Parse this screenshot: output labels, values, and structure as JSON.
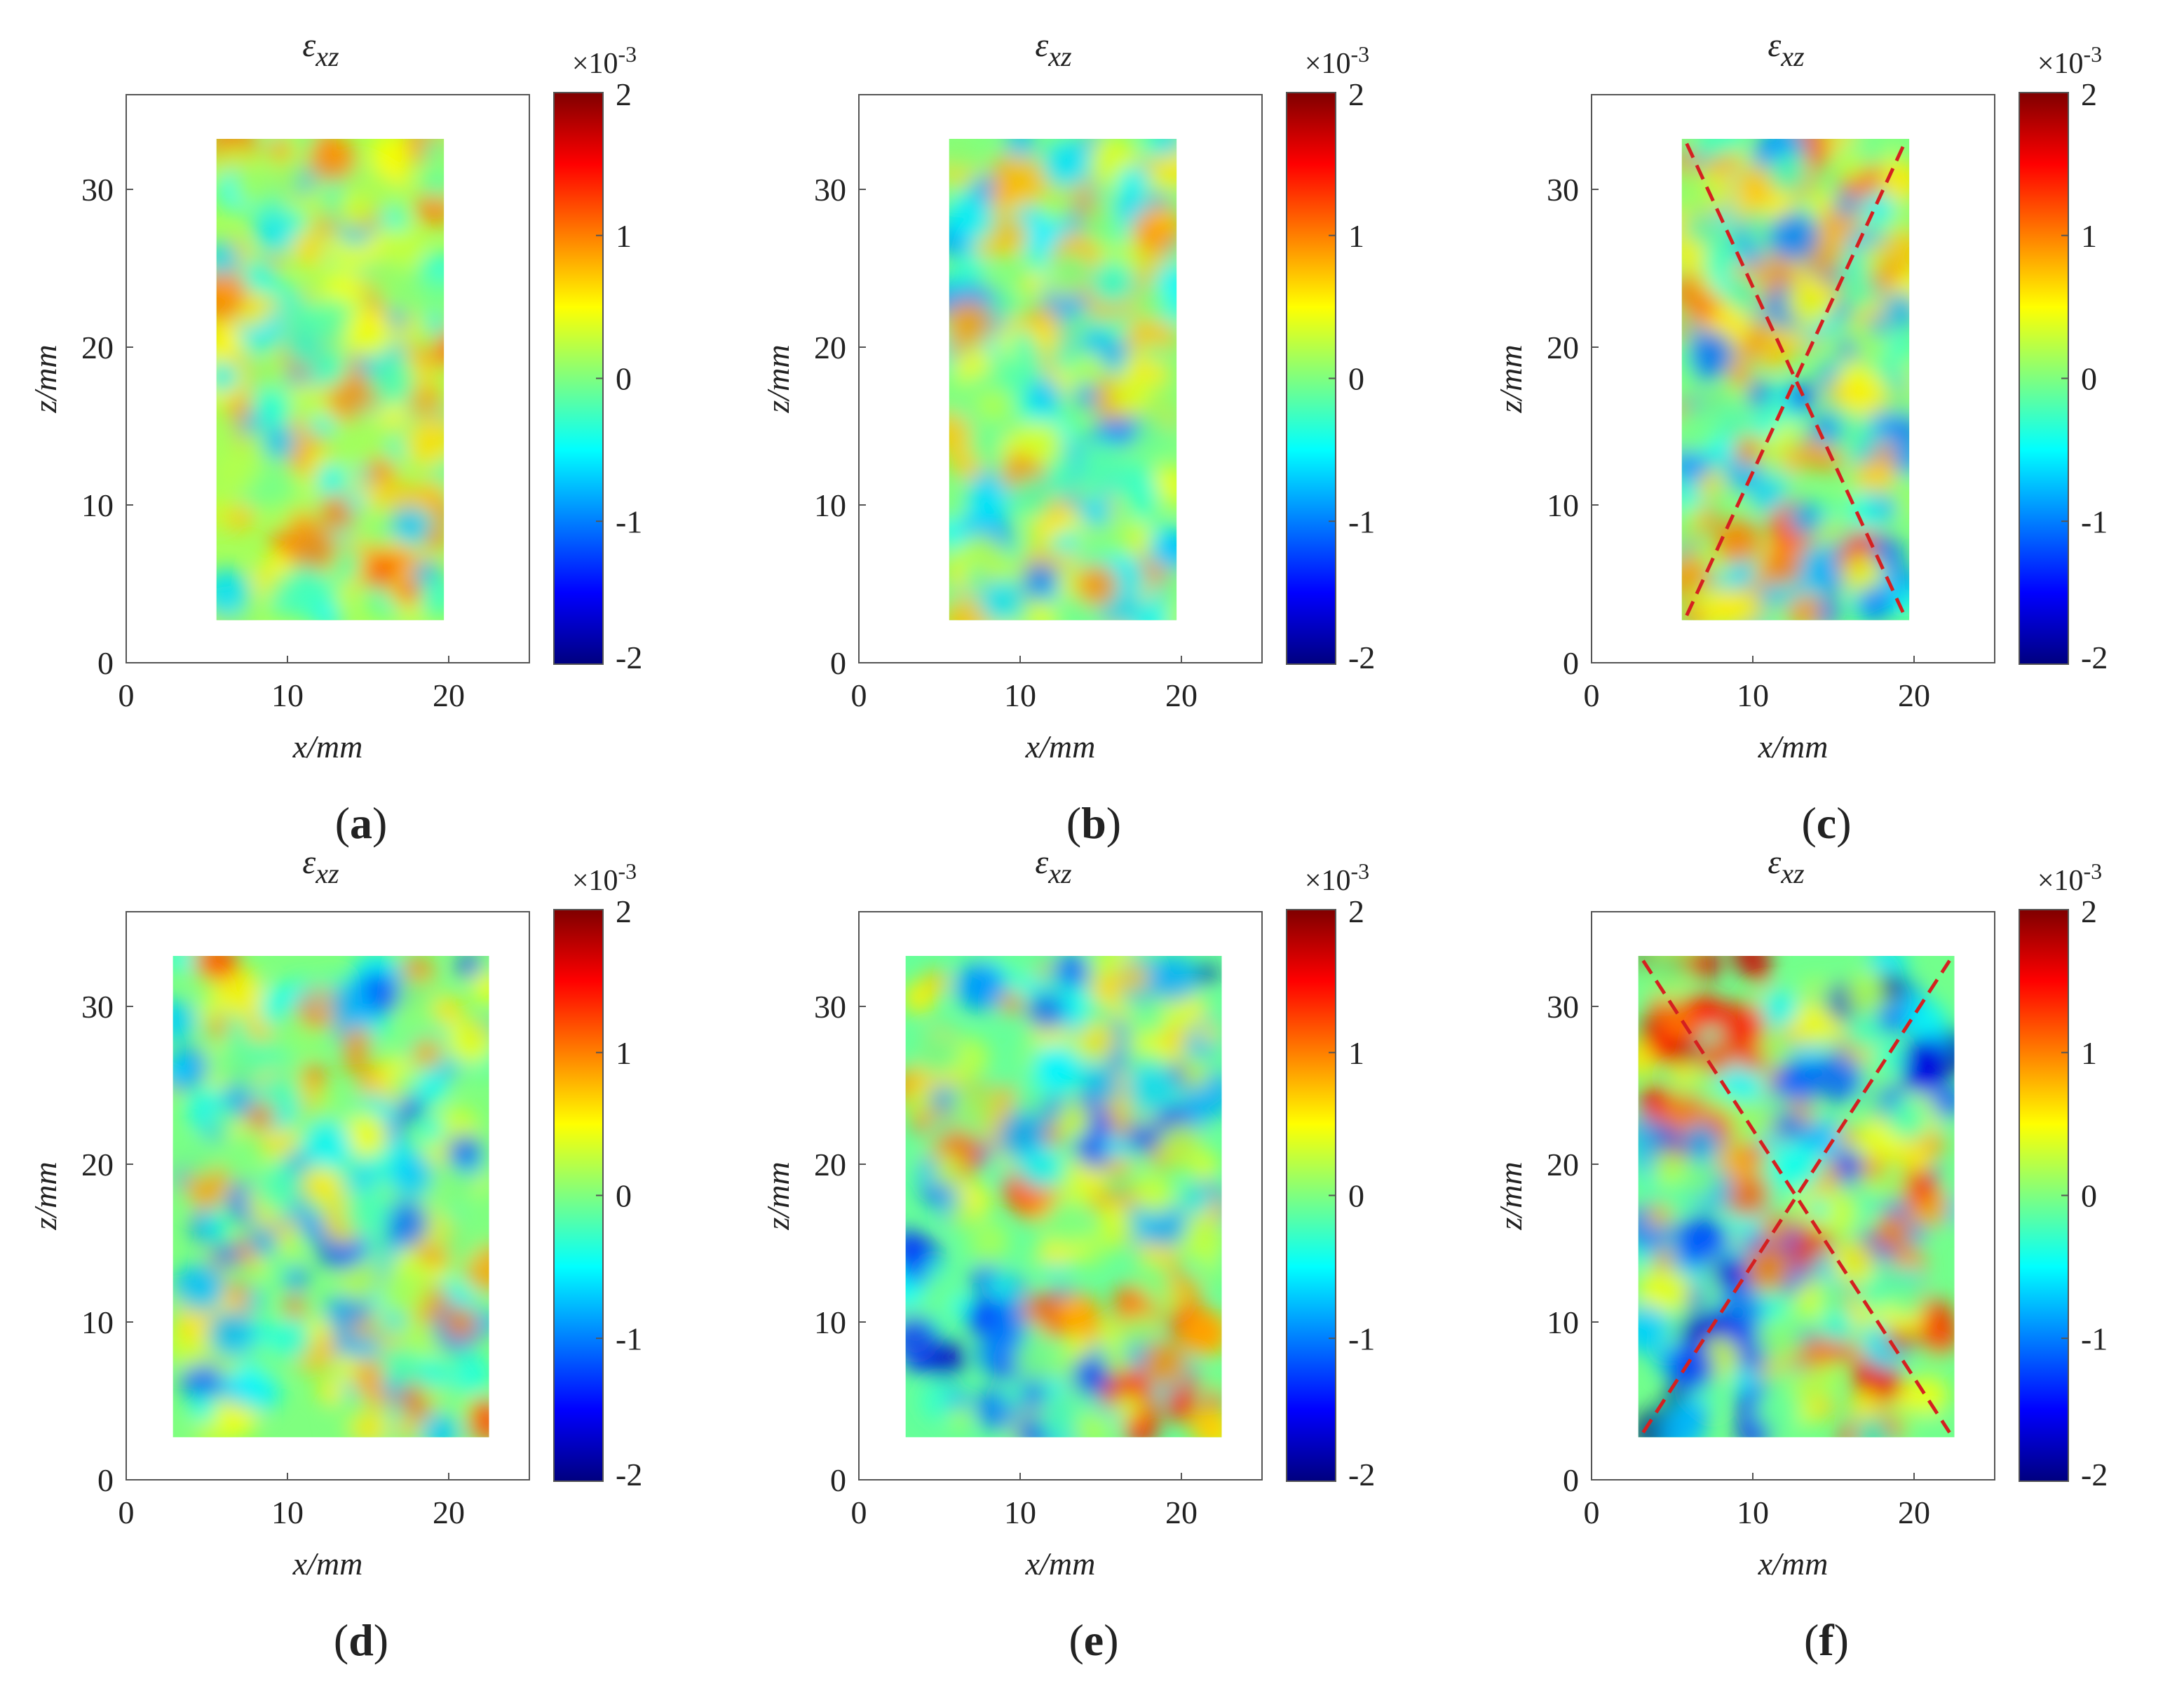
{
  "figure": {
    "colormap": "jet",
    "colors": {
      "jet": [
        "#00007f",
        "#0000ff",
        "#007fff",
        "#00ffff",
        "#7fff7f",
        "#ffff00",
        "#ff7f00",
        "#ff0000",
        "#7f0000"
      ],
      "dashed_line": "#d42020"
    }
  },
  "chart_data": [
    {
      "id": "a",
      "type": "heatmap",
      "panel_label": "(a)",
      "title": "ε",
      "title_subscript": "xz",
      "xlabel": "x/mm",
      "ylabel": "z/mm",
      "xlim": [
        0,
        25
      ],
      "ylim": [
        0,
        36
      ],
      "xticks": [
        "0",
        "10",
        "20"
      ],
      "yticks": [
        "0",
        "10",
        "20",
        "30"
      ],
      "colorbar": {
        "range": [
          -2,
          2
        ],
        "ticks": [
          "-2",
          "-1",
          "0",
          "1",
          "2"
        ],
        "multiplier": "×10",
        "exponent": "-3"
      },
      "region": {
        "x": [
          5.6,
          19.7
        ],
        "z": [
          2.7,
          33.2
        ]
      },
      "field": {
        "mean": 0.15,
        "amplitude": 0.55,
        "seed": 11,
        "gradient": 0.0
      },
      "dashed_lines": false
    },
    {
      "id": "b",
      "type": "heatmap",
      "panel_label": "(b)",
      "title": "ε",
      "title_subscript": "xz",
      "xlabel": "x/mm",
      "ylabel": "z/mm",
      "xlim": [
        0,
        25
      ],
      "ylim": [
        0,
        36
      ],
      "xticks": [
        "0",
        "10",
        "20"
      ],
      "yticks": [
        "0",
        "10",
        "20",
        "30"
      ],
      "colorbar": {
        "range": [
          -2,
          2
        ],
        "ticks": [
          "-2",
          "-1",
          "0",
          "1",
          "2"
        ],
        "multiplier": "×10",
        "exponent": "-3"
      },
      "region": {
        "x": [
          5.6,
          19.7
        ],
        "z": [
          2.7,
          33.2
        ]
      },
      "field": {
        "mean": 0.0,
        "amplitude": 0.55,
        "seed": 23,
        "gradient": 0.0
      },
      "dashed_lines": false
    },
    {
      "id": "c",
      "type": "heatmap",
      "panel_label": "(c)",
      "title": "ε",
      "title_subscript": "xz",
      "xlabel": "x/mm",
      "ylabel": "z/mm",
      "xlim": [
        0,
        25
      ],
      "ylim": [
        0,
        36
      ],
      "xticks": [
        "0",
        "10",
        "20"
      ],
      "yticks": [
        "0",
        "10",
        "20",
        "30"
      ],
      "colorbar": {
        "range": [
          -2,
          2
        ],
        "ticks": [
          "-2",
          "-1",
          "0",
          "1",
          "2"
        ],
        "multiplier": "×10",
        "exponent": "-3"
      },
      "region": {
        "x": [
          5.6,
          19.7
        ],
        "z": [
          2.7,
          33.2
        ]
      },
      "field": {
        "mean": 0.0,
        "amplitude": 0.7,
        "seed": 37,
        "gradient": 0.15
      },
      "dashed_lines": true
    },
    {
      "id": "d",
      "type": "heatmap",
      "panel_label": "(d)",
      "title": "ε",
      "title_subscript": "xz",
      "xlabel": "x/mm",
      "ylabel": "z/mm",
      "xlim": [
        0,
        25
      ],
      "ylim": [
        0,
        36
      ],
      "xticks": [
        "0",
        "10",
        "20"
      ],
      "yticks": [
        "0",
        "10",
        "20",
        "30"
      ],
      "colorbar": {
        "range": [
          -2,
          2
        ],
        "ticks": [
          "-2",
          "-1",
          "0",
          "1",
          "2"
        ],
        "multiplier": "×10",
        "exponent": "-3"
      },
      "region": {
        "x": [
          2.9,
          22.5
        ],
        "z": [
          2.7,
          33.2
        ]
      },
      "field": {
        "mean": 0.0,
        "amplitude": 0.65,
        "seed": 53,
        "gradient": 0.2
      },
      "dashed_lines": false
    },
    {
      "id": "e",
      "type": "heatmap",
      "panel_label": "(e)",
      "title": "ε",
      "title_subscript": "xz",
      "xlabel": "x/mm",
      "ylabel": "z/mm",
      "xlim": [
        0,
        25
      ],
      "ylim": [
        0,
        36
      ],
      "xticks": [
        "0",
        "10",
        "20"
      ],
      "yticks": [
        "0",
        "10",
        "20",
        "30"
      ],
      "colorbar": {
        "range": [
          -2,
          2
        ],
        "ticks": [
          "-2",
          "-1",
          "0",
          "1",
          "2"
        ],
        "multiplier": "×10",
        "exponent": "-3"
      },
      "region": {
        "x": [
          2.9,
          22.5
        ],
        "z": [
          2.7,
          33.2
        ]
      },
      "field": {
        "mean": -0.1,
        "amplitude": 0.7,
        "seed": 71,
        "gradient": 0.45
      },
      "dashed_lines": false
    },
    {
      "id": "f",
      "type": "heatmap",
      "panel_label": "(f)",
      "title": "ε",
      "title_subscript": "xz",
      "xlabel": "x/mm",
      "ylabel": "z/mm",
      "xlim": [
        0,
        25
      ],
      "ylim": [
        0,
        36
      ],
      "xticks": [
        "0",
        "10",
        "20"
      ],
      "yticks": [
        "0",
        "10",
        "20",
        "30"
      ],
      "colorbar": {
        "range": [
          -2,
          2
        ],
        "ticks": [
          "-2",
          "-1",
          "0",
          "1",
          "2"
        ],
        "multiplier": "×10",
        "exponent": "-3"
      },
      "region": {
        "x": [
          2.9,
          22.5
        ],
        "z": [
          2.7,
          33.2
        ]
      },
      "field": {
        "mean": -0.05,
        "amplitude": 0.75,
        "seed": 89,
        "gradient": 0.9
      },
      "dashed_lines": true
    }
  ]
}
